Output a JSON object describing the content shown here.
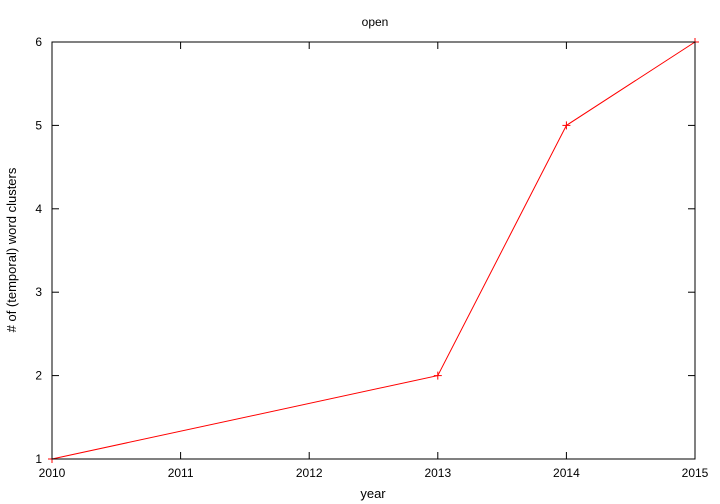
{
  "chart_data": {
    "type": "line",
    "title": "open",
    "xlabel": "year",
    "ylabel": "# of (temporal) word clusters",
    "x": [
      2010,
      2013,
      2014,
      2015
    ],
    "series": [
      {
        "values": [
          1,
          2,
          5,
          6
        ],
        "color": "#ff0000",
        "marker": "plus"
      }
    ],
    "xlim": [
      2010,
      2015
    ],
    "ylim": [
      1,
      6
    ],
    "xticks": [
      2010,
      2011,
      2012,
      2013,
      2014,
      2015
    ],
    "yticks": [
      1,
      2,
      3,
      4,
      5,
      6
    ],
    "grid": false,
    "legend": "none"
  }
}
